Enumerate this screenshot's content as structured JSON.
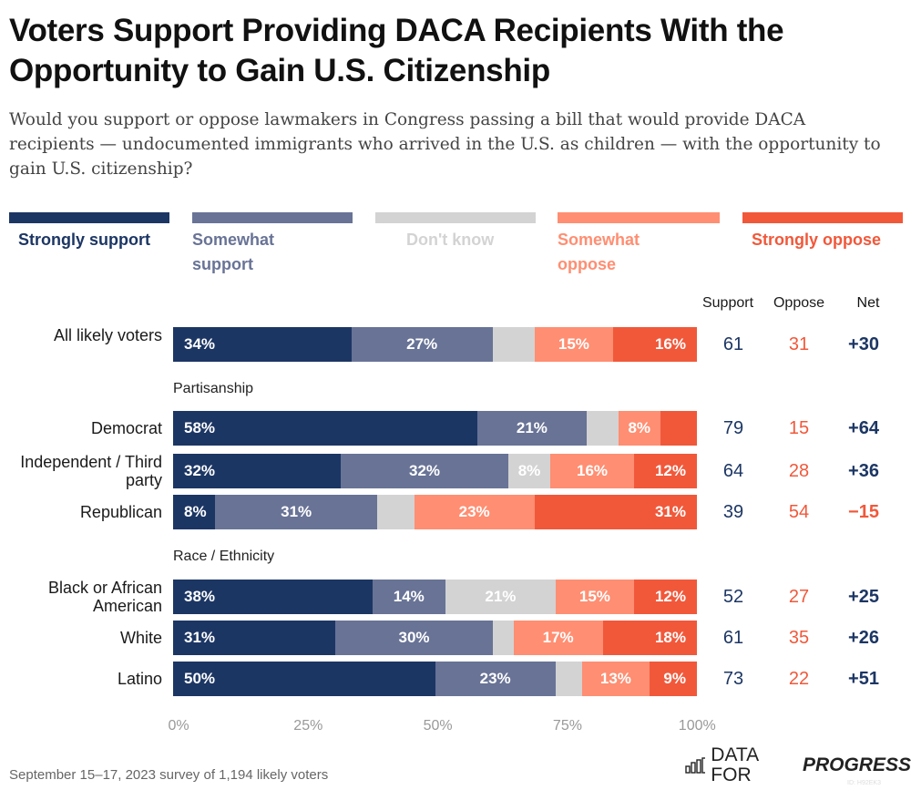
{
  "title": "Voters Support Providing DACA Recipients With the Opportunity to Gain U.S. Citizenship",
  "subtitle": "Would you support or oppose lawmakers in Congress passing a bill that would provide DACA recipients — undocumented immigrants who arrived in the U.S. as children — with the opportunity to gain U.S. citizenship?",
  "footer": "September 15–17, 2023 survey of 1,194 likely voters",
  "logo": {
    "text_plain": "DATA FOR",
    "text_bold": "PROGRESS",
    "id": "ID: H92EK3"
  },
  "chart_data": {
    "type": "bar",
    "orientation": "horizontal-stacked",
    "series": [
      {
        "name": "Strongly support",
        "color": "#1c3664"
      },
      {
        "name": "Somewhat support",
        "color": "#687396"
      },
      {
        "name": "Don't know",
        "color": "#d3d3d3"
      },
      {
        "name": "Somewhat oppose",
        "color": "#ff8e72"
      },
      {
        "name": "Strongly oppose",
        "color": "#f1583a"
      }
    ],
    "legend_placement": "top",
    "column_headers": {
      "support": "Support",
      "oppose": "Oppose",
      "net": "Net"
    },
    "xlim": [
      0,
      100
    ],
    "x_ticks": [
      "0%",
      "25%",
      "50%",
      "75%",
      "100%"
    ],
    "groups": [
      {
        "label": "",
        "rows": [
          {
            "label": "All likely voters",
            "values": [
              34,
              27,
              8,
              15,
              16
            ],
            "labels": [
              "34%",
              "27%",
              "",
              "15%",
              "16%"
            ],
            "support": "61",
            "oppose": "31",
            "net": "+30"
          }
        ]
      },
      {
        "label": "Partisanship",
        "rows": [
          {
            "label": "Democrat",
            "values": [
              58,
              21,
              6,
              8,
              7
            ],
            "labels": [
              "58%",
              "21%",
              "",
              "8%",
              ""
            ],
            "support": "79",
            "oppose": "15",
            "net": "+64"
          },
          {
            "label": "Independent / Third party",
            "values": [
              32,
              32,
              8,
              16,
              12
            ],
            "labels": [
              "32%",
              "32%",
              "8%",
              "16%",
              "12%"
            ],
            "support": "64",
            "oppose": "28",
            "net": "+36"
          },
          {
            "label": "Republican",
            "values": [
              8,
              31,
              7,
              23,
              31
            ],
            "labels": [
              "8%",
              "31%",
              "",
              "23%",
              "31%"
            ],
            "support": "39",
            "oppose": "54",
            "net": "−15"
          }
        ]
      },
      {
        "label": "Race / Ethnicity",
        "rows": [
          {
            "label": "Black or African American",
            "values": [
              38,
              14,
              21,
              15,
              12
            ],
            "labels": [
              "38%",
              "14%",
              "21%",
              "15%",
              "12%"
            ],
            "support": "52",
            "oppose": "27",
            "net": "+25"
          },
          {
            "label": "White",
            "values": [
              31,
              30,
              4,
              17,
              18
            ],
            "labels": [
              "31%",
              "30%",
              "",
              "17%",
              "18%"
            ],
            "support": "61",
            "oppose": "35",
            "net": "+26"
          },
          {
            "label": "Latino",
            "values": [
              50,
              23,
              5,
              13,
              9
            ],
            "labels": [
              "50%",
              "23%",
              "",
              "13%",
              "9%"
            ],
            "support": "73",
            "oppose": "22",
            "net": "+51"
          }
        ]
      }
    ],
    "colors": {
      "support_text": "#1c3664",
      "oppose_text": "#f1583a",
      "net_positive": "#1c3664",
      "net_negative": "#f1583a"
    }
  }
}
